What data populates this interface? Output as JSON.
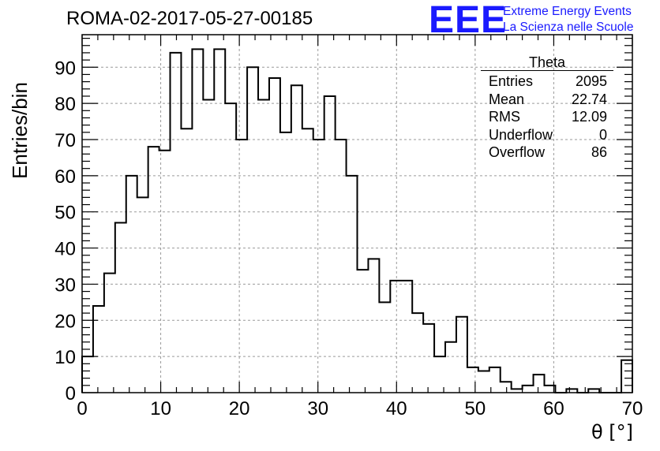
{
  "run_title": "ROMA-02-2017-05-27-00185",
  "logo": {
    "mark": "EEE",
    "line1": "Extreme Energy Events",
    "line2": "La Scienza nelle Scuole",
    "color": "#1a1aff"
  },
  "stats": {
    "title": "Theta",
    "rows": [
      {
        "label": "Entries",
        "value": "2095"
      },
      {
        "label": "Mean",
        "value": "22.74"
      },
      {
        "label": "RMS",
        "value": "12.09"
      },
      {
        "label": "Underflow",
        "value": "0"
      },
      {
        "label": "Overflow",
        "value": "86"
      }
    ]
  },
  "chart_data": {
    "type": "bar",
    "histogram": true,
    "title": "",
    "xlabel": "θ [°]",
    "ylabel": "Entries/bin",
    "xlim": [
      0,
      70
    ],
    "ylim": [
      0,
      99
    ],
    "bin_width": 1.4,
    "grid": true,
    "x_ticks": [
      0,
      10,
      20,
      30,
      40,
      50,
      60,
      70
    ],
    "y_ticks": [
      0,
      10,
      20,
      30,
      40,
      50,
      60,
      70,
      80,
      90
    ],
    "bin_starts": [
      0,
      1.4,
      2.8,
      4.2,
      5.6,
      7.0,
      8.4,
      9.8,
      11.2,
      12.6,
      14.0,
      15.4,
      16.8,
      18.2,
      19.6,
      21.0,
      22.4,
      23.8,
      25.2,
      26.6,
      28.0,
      29.4,
      30.8,
      32.2,
      33.6,
      35.0,
      36.4,
      37.8,
      39.2,
      40.6,
      42.0,
      43.4,
      44.8,
      46.2,
      47.6,
      49.0,
      50.4,
      51.8,
      53.2,
      54.6,
      56.0,
      57.4,
      58.8,
      60.2,
      61.6,
      63.0,
      64.4,
      65.8,
      67.2,
      68.6
    ],
    "values": [
      10,
      24,
      33,
      47,
      60,
      54,
      68,
      67,
      94,
      73,
      95,
      81,
      95,
      80,
      70,
      90,
      81,
      87,
      72,
      85,
      73,
      70,
      82,
      70,
      60,
      34,
      37,
      25,
      31,
      31,
      22,
      19,
      10,
      14,
      21,
      7,
      6,
      7,
      3,
      1,
      2,
      5,
      2,
      0,
      1,
      0,
      1,
      0,
      0,
      9
    ],
    "line_color": "#000000",
    "grid_color": "#9a9a9a"
  }
}
